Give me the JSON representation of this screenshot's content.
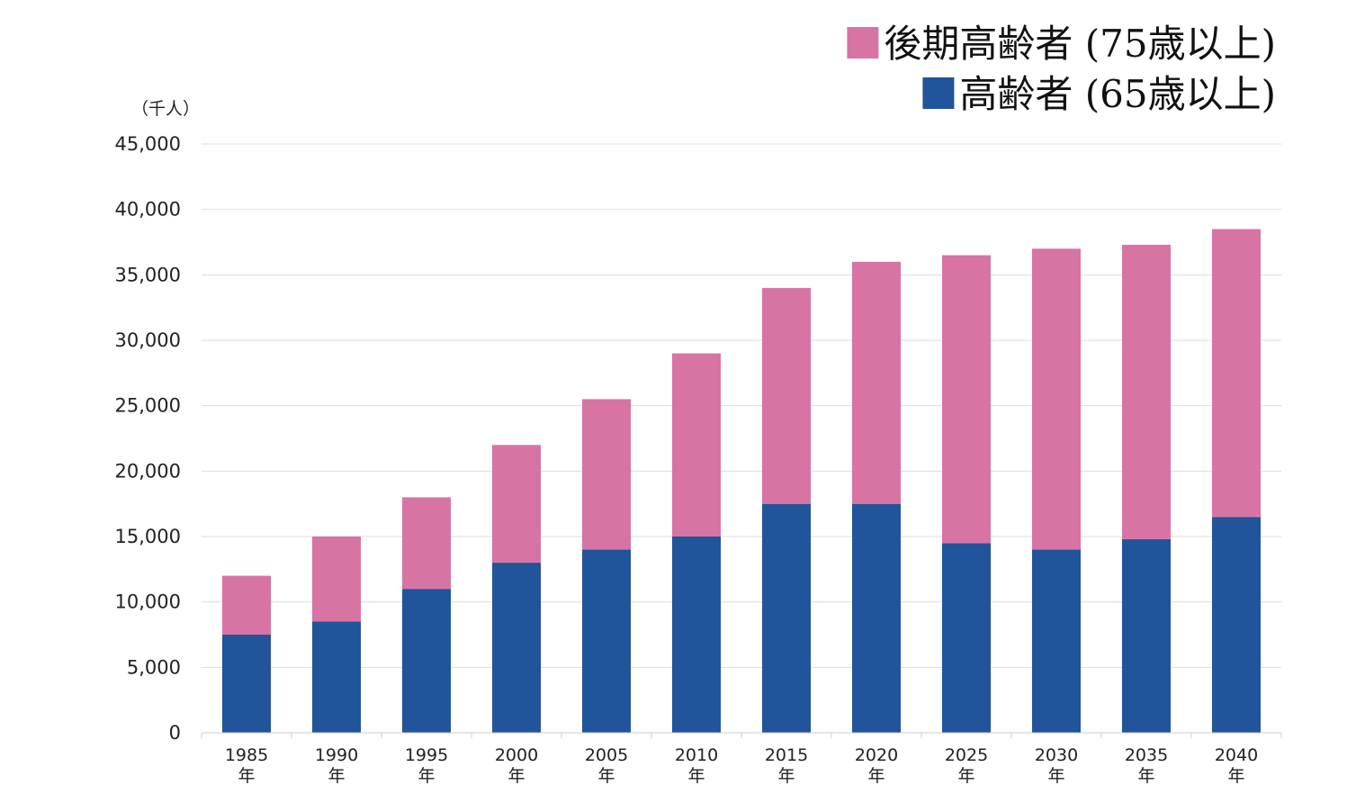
{
  "chart_data": {
    "type": "bar",
    "stacked": true,
    "unit": "（千人）",
    "categories": [
      [
        "1985",
        "年"
      ],
      [
        "1990",
        "年"
      ],
      [
        "1995",
        "年"
      ],
      [
        "2000",
        "年"
      ],
      [
        "2005",
        "年"
      ],
      [
        "2010",
        "年"
      ],
      [
        "2015",
        "年"
      ],
      [
        "2020",
        "年"
      ],
      [
        "2025",
        "年"
      ],
      [
        "2030",
        "年"
      ],
      [
        "2035",
        "年"
      ],
      [
        "2040",
        "年"
      ]
    ],
    "ylim": [
      0,
      45000
    ],
    "yticks": [
      {
        "value": 0,
        "label": "0"
      },
      {
        "value": 5000,
        "label": "5,000"
      },
      {
        "value": 10000,
        "label": "10,000"
      },
      {
        "value": 15000,
        "label": "15,000"
      },
      {
        "value": 20000,
        "label": "20,000"
      },
      {
        "value": 25000,
        "label": "25,000"
      },
      {
        "value": 30000,
        "label": "30,000"
      },
      {
        "value": 35000,
        "label": "35,000"
      },
      {
        "value": 40000,
        "label": "40,000"
      },
      {
        "value": 45000,
        "label": "45,000"
      }
    ],
    "grid": true,
    "legend_position": "top-right",
    "stack_note": "bottom segment = 高齢者 (65歳以上); top segment reaches total value",
    "series": [
      {
        "name": "高齢者 (65歳以上)",
        "color": "#21549a",
        "values": [
          7500,
          8500,
          11000,
          13000,
          14000,
          15000,
          17500,
          17500,
          14500,
          14000,
          14800,
          16500
        ]
      },
      {
        "name": "後期高齢者 (75歳以上)",
        "color": "#d774a3",
        "values": [
          4500,
          6500,
          7000,
          9000,
          11500,
          14000,
          16500,
          18500,
          22000,
          23000,
          22500,
          22000
        ]
      }
    ],
    "legend_order": [
      1,
      0
    ]
  }
}
